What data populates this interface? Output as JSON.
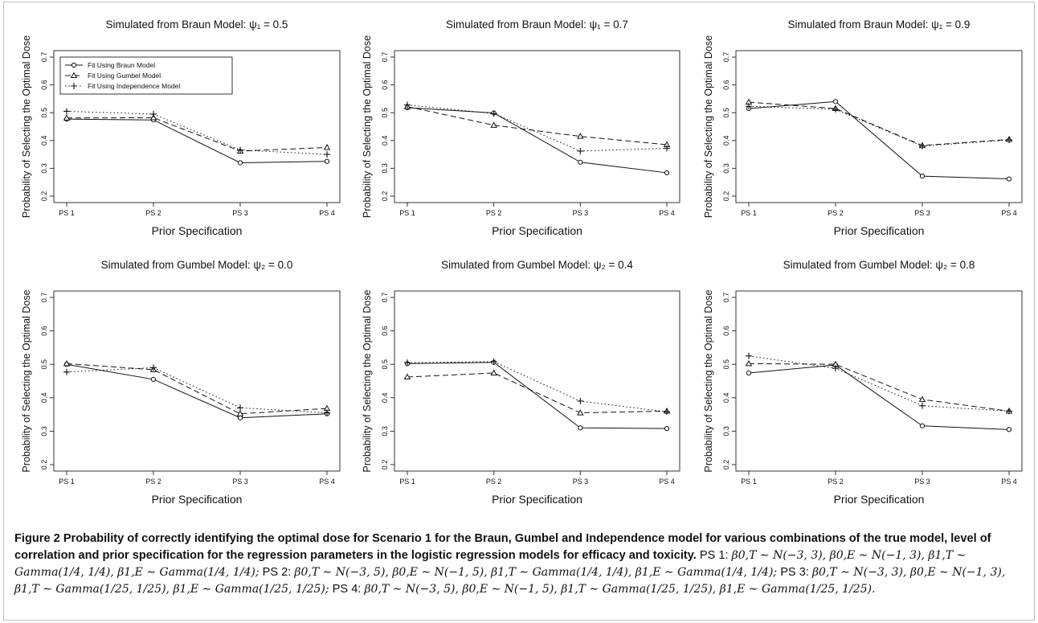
{
  "chart_data": [
    {
      "type": "line",
      "title": "Simulated from Braun Model: ψ₁ = 0.5",
      "xlabel": "Prior Specification",
      "ylabel": "Probability of Selecting the Optimal Dose",
      "categories": [
        "PS 1",
        "PS 2",
        "PS 3",
        "PS 4"
      ],
      "ylim": [
        0.2,
        0.7
      ],
      "yticks": [
        "0.2",
        "0.3",
        "0.4",
        "0.5",
        "0.6",
        "0.7"
      ],
      "legend": "top-left",
      "series": [
        {
          "name": "Fit Using Braun Model",
          "values": [
            0.477,
            0.474,
            0.32,
            0.325
          ]
        },
        {
          "name": "Fit Using Gumbel Model",
          "values": [
            0.481,
            0.482,
            0.362,
            0.375
          ]
        },
        {
          "name": "Fit Using Independence Model",
          "values": [
            0.505,
            0.495,
            0.366,
            0.35
          ]
        }
      ]
    },
    {
      "type": "line",
      "title": "Simulated from Braun Model: ψ₁ = 0.7",
      "xlabel": "Prior Specification",
      "ylabel": "Probability of Selecting the Optimal Dose",
      "categories": [
        "PS 1",
        "PS 2",
        "PS 3",
        "PS 4"
      ],
      "ylim": [
        0.2,
        0.7
      ],
      "yticks": [
        "0.2",
        "0.3",
        "0.4",
        "0.5",
        "0.6",
        "0.7"
      ],
      "series": [
        {
          "values": [
            0.518,
            0.499,
            0.322,
            0.284
          ]
        },
        {
          "values": [
            0.522,
            0.455,
            0.415,
            0.385
          ]
        },
        {
          "values": [
            0.528,
            0.497,
            0.362,
            0.372
          ]
        }
      ]
    },
    {
      "type": "line",
      "title": "Simulated from Braun Model: ψ₁ = 0.9",
      "xlabel": "Prior Specification",
      "ylabel": "Probability of Selecting the Optimal Dose",
      "categories": [
        "PS 1",
        "PS 2",
        "PS 3",
        "PS 4"
      ],
      "ylim": [
        0.2,
        0.7
      ],
      "yticks": [
        "0.2",
        "0.3",
        "0.4",
        "0.5",
        "0.6",
        "0.7"
      ],
      "series": [
        {
          "values": [
            0.515,
            0.54,
            0.272,
            0.262
          ]
        },
        {
          "values": [
            0.538,
            0.515,
            0.382,
            0.404
          ]
        },
        {
          "values": [
            0.523,
            0.512,
            0.38,
            0.402
          ]
        }
      ]
    },
    {
      "type": "line",
      "title": "Simulated from Gumbel Model: ψ₂ = 0.0",
      "xlabel": "Prior Specification",
      "ylabel": "Probability of Selecting the Optimal Dose",
      "categories": [
        "PS 1",
        "PS 2",
        "PS 3",
        "PS 4"
      ],
      "ylim": [
        0.2,
        0.7
      ],
      "yticks": [
        "0.2",
        "0.3",
        "0.4",
        "0.5",
        "0.6",
        "0.7"
      ],
      "series": [
        {
          "values": [
            0.5,
            0.455,
            0.34,
            0.352
          ]
        },
        {
          "values": [
            0.502,
            0.484,
            0.352,
            0.368
          ]
        },
        {
          "values": [
            0.477,
            0.49,
            0.37,
            0.355
          ]
        }
      ]
    },
    {
      "type": "line",
      "title": "Simulated from Gumbel Model: ψ₂ = 0.4",
      "xlabel": "Prior Specification",
      "ylabel": "Probability of Selecting the Optimal Dose",
      "categories": [
        "PS 1",
        "PS 2",
        "PS 3",
        "PS 4"
      ],
      "ylim": [
        0.2,
        0.7
      ],
      "yticks": [
        "0.2",
        "0.3",
        "0.4",
        "0.5",
        "0.6",
        "0.7"
      ],
      "series": [
        {
          "values": [
            0.502,
            0.506,
            0.31,
            0.308
          ]
        },
        {
          "values": [
            0.462,
            0.474,
            0.355,
            0.36
          ]
        },
        {
          "values": [
            0.505,
            0.508,
            0.39,
            0.358
          ]
        }
      ]
    },
    {
      "type": "line",
      "title": "Simulated from Gumbel Model: ψ₂ = 0.8",
      "xlabel": "Prior Specification",
      "ylabel": "Probability of Selecting the Optimal Dose",
      "categories": [
        "PS 1",
        "PS 2",
        "PS 3",
        "PS 4"
      ],
      "ylim": [
        0.2,
        0.7
      ],
      "yticks": [
        "0.2",
        "0.3",
        "0.4",
        "0.5",
        "0.6",
        "0.7"
      ],
      "series": [
        {
          "values": [
            0.474,
            0.498,
            0.316,
            0.305
          ]
        },
        {
          "values": [
            0.502,
            0.5,
            0.395,
            0.36
          ]
        },
        {
          "values": [
            0.525,
            0.488,
            0.376,
            0.36
          ]
        }
      ]
    }
  ],
  "caption": {
    "bold": "Figure 2 Probability of correctly identifying the optimal dose for Scenario 1 for the Braun, Gumbel and Independence model for various combinations of the true model, level of correlation and prior specification for the regression parameters in the logistic regression models for efficacy and toxicity.",
    "ps1_label": "PS 1:",
    "ps1": "β0,T ∼ N(−3, 3), β0,E ∼ N(−1, 3), β1,T ∼ Gamma(1/4, 1/4), β1,E ∼ Gamma(1/4, 1/4);",
    "ps2_label": "PS 2:",
    "ps2": "β0,T ∼ N(−3, 5), β0,E ∼ N(−1, 5), β1,T ∼ Gamma(1/4, 1/4), β1,E ∼ Gamma(1/4, 1/4);",
    "ps3_label": "PS 3:",
    "ps3": "β0,T ∼ N(−3, 3), β0,E ∼ N(−1, 3), β1,T ∼ Gamma(1/25, 1/25), β1,E ∼ Gamma(1/25, 1/25);",
    "ps4_label": "PS 4:",
    "ps4": "β0,T ∼ N(−3, 5), β0,E ∼ N(−1, 5), β1,T ∼ Gamma(1/25, 1/25), β1,E ∼ Gamma(1/25, 1/25)."
  }
}
